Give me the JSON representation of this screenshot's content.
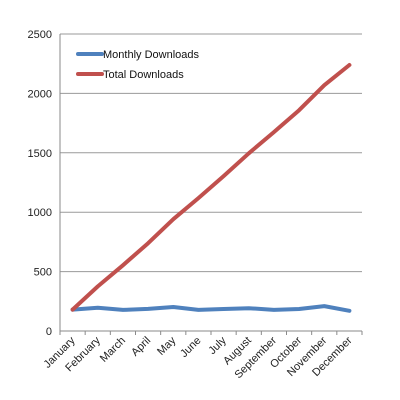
{
  "chart_data": {
    "type": "line",
    "title": "",
    "xlabel": "",
    "ylabel": "",
    "categories": [
      "January",
      "February",
      "March",
      "April",
      "May",
      "June",
      "July",
      "August",
      "September",
      "October",
      "November",
      "December"
    ],
    "ylim": [
      0,
      2500
    ],
    "yticks": [
      0,
      500,
      1000,
      1500,
      2000,
      2500
    ],
    "grid": "horizontal",
    "legend_position": "top-left",
    "series": [
      {
        "name": "Monthly Downloads",
        "color": "#4f81bd",
        "values": [
          180,
          195,
          178,
          186,
          202,
          178,
          185,
          192,
          178,
          185,
          210,
          170
        ]
      },
      {
        "name": "Total Downloads",
        "color": "#c0504d",
        "values": [
          180,
          375,
          553,
          739,
          941,
          1119,
          1304,
          1496,
          1674,
          1859,
          2069,
          2239
        ]
      }
    ]
  }
}
